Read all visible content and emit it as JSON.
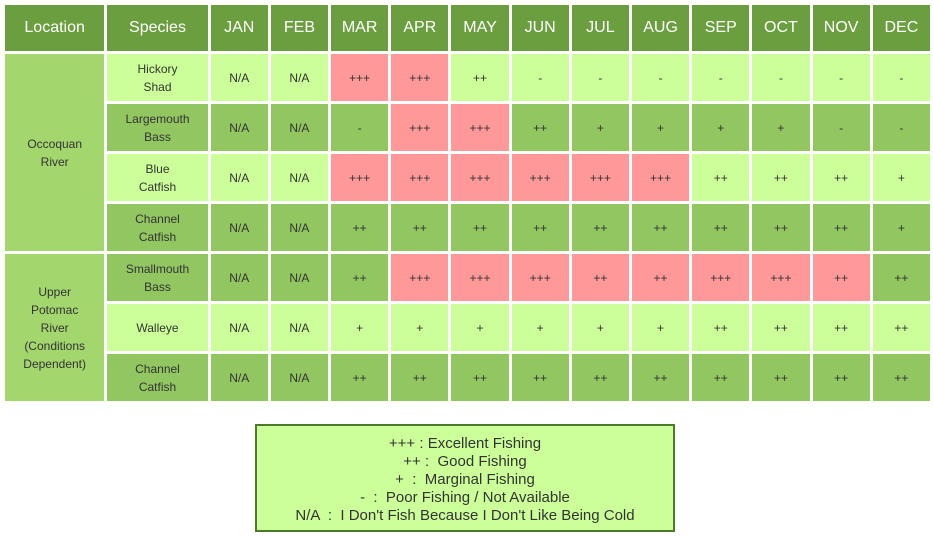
{
  "headers": {
    "location": "Location",
    "species": "Species",
    "months": [
      "JAN",
      "FEB",
      "MAR",
      "APR",
      "MAY",
      "JUN",
      "JUL",
      "AUG",
      "SEP",
      "OCT",
      "NOV",
      "DEC"
    ]
  },
  "colors": {
    "header": "#6b9e3f",
    "location": "#a4d66e",
    "light_row": "#ccff99",
    "dark_row": "#92c661",
    "excellent": "#ff9999",
    "legend_border": "#4b7a28"
  },
  "groups": [
    {
      "location": "Occoquan\nRiver",
      "rows": [
        {
          "species": "Hickory\nShad",
          "shade": "light",
          "values": [
            "N/A",
            "N/A",
            "+++",
            "+++",
            "++",
            "-",
            "-",
            "-",
            "-",
            "-",
            "-",
            "-"
          ]
        },
        {
          "species": "Largemouth\nBass",
          "shade": "dark",
          "values": [
            "N/A",
            "N/A",
            "-",
            "+++",
            "+++",
            "++",
            "+",
            "+",
            "+",
            "+",
            "-",
            "-"
          ]
        },
        {
          "species": "Blue\nCatfish",
          "shade": "light",
          "values": [
            "N/A",
            "N/A",
            "+++",
            "+++",
            "+++",
            "+++",
            "+++",
            "+++",
            "++",
            "++",
            "++",
            "+"
          ]
        },
        {
          "species": "Channel\nCatfish",
          "shade": "dark",
          "values": [
            "N/A",
            "N/A",
            "++",
            "++",
            "++",
            "++",
            "++",
            "++",
            "++",
            "++",
            "++",
            "+"
          ]
        }
      ]
    },
    {
      "location": "Upper\nPotomac\nRiver\n(Conditions\nDependent)",
      "rows": [
        {
          "species": "Smallmouth\nBass",
          "shade": "dark",
          "values": [
            "N/A",
            "N/A",
            "++",
            "+++",
            "+++",
            "+++",
            "++",
            "++",
            "+++",
            "+++",
            "++",
            "++"
          ],
          "highlight": [
            false,
            false,
            false,
            true,
            true,
            true,
            true,
            true,
            true,
            true,
            true,
            false
          ]
        },
        {
          "species": "Walleye",
          "shade": "light",
          "values": [
            "N/A",
            "N/A",
            "+",
            "+",
            "+",
            "+",
            "+",
            "+",
            "++",
            "++",
            "++",
            "++"
          ]
        },
        {
          "species": "Channel\nCatfish",
          "shade": "dark",
          "values": [
            "N/A",
            "N/A",
            "++",
            "++",
            "++",
            "++",
            "++",
            "++",
            "++",
            "++",
            "++",
            "++"
          ]
        }
      ]
    }
  ],
  "legend": [
    "+++ : Excellent Fishing",
    "++ :  Good Fishing",
    "+  :  Marginal Fishing",
    "-  :  Poor Fishing / Not Available",
    "N/A  :  I Don't Fish Because I Don't Like Being Cold"
  ]
}
